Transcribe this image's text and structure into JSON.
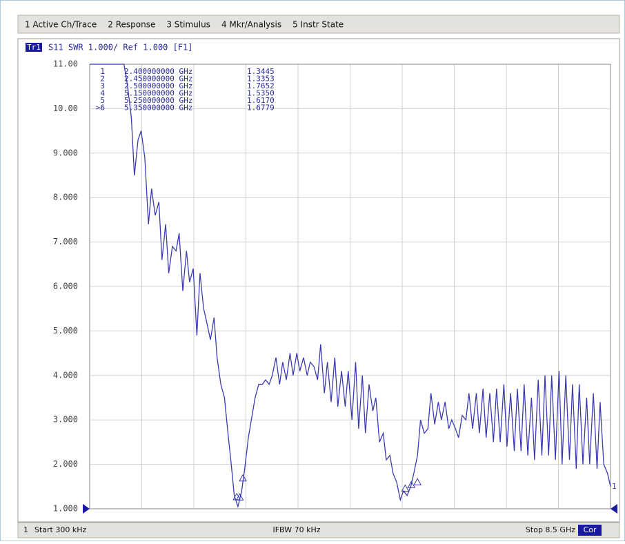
{
  "menu": [
    "1 Active Ch/Trace",
    "2 Response",
    "3 Stimulus",
    "4 Mkr/Analysis",
    "5 Instr State"
  ],
  "chart_data": {
    "type": "line",
    "channel_label": "Tr1",
    "title": "S11  SWR 1.000/ Ref 1.000  [F1]",
    "color": "#3a3ab0",
    "x": [
      0.0003,
      0.56,
      0.62,
      0.68,
      0.73,
      0.79,
      0.84,
      0.9,
      0.96,
      1.01,
      1.07,
      1.13,
      1.18,
      1.24,
      1.29,
      1.35,
      1.41,
      1.46,
      1.52,
      1.58,
      1.63,
      1.69,
      1.75,
      1.8,
      1.86,
      1.91,
      1.97,
      2.03,
      2.08,
      2.14,
      2.2,
      2.25,
      2.31,
      2.36,
      2.42,
      2.48,
      2.53,
      2.59,
      2.65,
      2.7,
      2.76,
      2.82,
      2.87,
      2.93,
      2.98,
      3.04,
      3.1,
      3.15,
      3.21,
      3.27,
      3.32,
      3.38,
      3.43,
      3.49,
      3.55,
      3.6,
      3.66,
      3.72,
      3.77,
      3.83,
      3.88,
      3.94,
      4.0,
      4.05,
      4.11,
      4.17,
      4.22,
      4.28,
      4.34,
      4.39,
      4.45,
      4.5,
      4.56,
      4.62,
      4.67,
      4.73,
      4.79,
      4.84,
      4.9,
      4.95,
      5.01,
      5.07,
      5.12,
      5.18,
      5.24,
      5.29,
      5.35,
      5.4,
      5.46,
      5.52,
      5.57,
      5.63,
      5.69,
      5.74,
      5.8,
      5.86,
      5.91,
      5.97,
      6.02,
      6.08,
      6.14,
      6.19,
      6.25,
      6.31,
      6.36,
      6.42,
      6.47,
      6.53,
      6.59,
      6.64,
      6.7,
      6.76,
      6.81,
      6.87,
      6.93,
      6.98,
      7.04,
      7.09,
      7.15,
      7.21,
      7.26,
      7.32,
      7.38,
      7.43,
      7.49,
      7.54,
      7.6,
      7.66,
      7.71,
      7.77,
      7.83,
      7.88,
      7.94,
      7.99,
      8.05,
      8.11,
      8.16,
      8.22,
      8.28,
      8.33,
      8.39,
      8.45,
      8.5
    ],
    "values": [
      11,
      11,
      10.5,
      9.8,
      8.5,
      9.3,
      9.5,
      8.9,
      7.4,
      8.2,
      7.6,
      7.9,
      6.6,
      7.4,
      6.3,
      6.9,
      6.8,
      7.2,
      5.9,
      6.8,
      6.1,
      6.4,
      4.9,
      6.3,
      5.5,
      5.2,
      4.8,
      5.3,
      4.4,
      3.8,
      3.5,
      2.8,
      2.0,
      1.3,
      1.05,
      1.4,
      1.9,
      2.6,
      3.1,
      3.5,
      3.8,
      3.8,
      3.9,
      3.8,
      4.0,
      4.4,
      3.8,
      4.3,
      3.9,
      4.5,
      4.0,
      4.5,
      4.1,
      4.4,
      4.0,
      4.3,
      4.2,
      3.9,
      4.7,
      3.6,
      4.3,
      3.4,
      4.4,
      3.3,
      4.1,
      3.3,
      4.1,
      3.0,
      4.3,
      2.8,
      4.0,
      2.7,
      3.8,
      3.2,
      3.5,
      2.5,
      2.7,
      2.1,
      2.2,
      1.8,
      1.6,
      1.2,
      1.4,
      1.3,
      1.5,
      1.8,
      2.2,
      3.0,
      2.7,
      2.8,
      3.6,
      2.9,
      3.4,
      3.0,
      3.4,
      2.8,
      3.0,
      2.8,
      2.6,
      3.1,
      3.0,
      3.6,
      2.8,
      3.6,
      2.7,
      3.7,
      2.6,
      3.6,
      2.5,
      3.7,
      2.5,
      3.8,
      2.4,
      3.6,
      2.3,
      3.7,
      2.3,
      3.8,
      2.2,
      3.5,
      2.1,
      3.9,
      2.2,
      4.0,
      2.2,
      4.0,
      2.1,
      4.1,
      2.0,
      4.0,
      2.1,
      3.8,
      1.9,
      3.8,
      2.0,
      3.5,
      2.0,
      3.6,
      1.9,
      3.4,
      2.0,
      1.8,
      1.5
    ],
    "xlim": [
      0.0003,
      8.5
    ],
    "ylim": [
      1,
      11
    ],
    "yticks": [
      {
        "value": 1,
        "label": "1.000"
      },
      {
        "value": 2,
        "label": "2.000"
      },
      {
        "value": 3,
        "label": "3.000"
      },
      {
        "value": 4,
        "label": "4.000"
      },
      {
        "value": 5,
        "label": "5.000"
      },
      {
        "value": 6,
        "label": "6.000"
      },
      {
        "value": 7,
        "label": "7.000"
      },
      {
        "value": 8,
        "label": "8.000"
      },
      {
        "value": 9,
        "label": "9.000"
      },
      {
        "value": 10,
        "label": "10.00"
      },
      {
        "value": 11,
        "label": "11.00"
      }
    ],
    "grid": true,
    "trace_label": "1",
    "markers": {
      "names": [
        "1",
        "2",
        "3",
        "4",
        "5",
        ">6"
      ],
      "x": [
        2.4,
        2.45,
        2.5,
        5.15,
        5.25,
        5.35
      ],
      "x_labels": [
        "2.400000000 GHz",
        "2.450000000 GHz",
        "2.500000000 GHz",
        "5.150000000 GHz",
        "5.250000000 GHz",
        "5.350000000 GHz"
      ],
      "values": [
        1.3445,
        1.3353,
        1.7652,
        1.535,
        1.617,
        1.6779
      ],
      "value_labels": [
        "1.3445",
        "1.3353",
        "1.7652",
        "1.5350",
        "1.6170",
        "1.6779"
      ]
    }
  },
  "status_bar": {
    "channel": "1",
    "start": "Start 300 kHz",
    "ifbw": "IFBW 70 kHz",
    "stop": "Stop 8.5 GHz",
    "correction": "Cor"
  }
}
